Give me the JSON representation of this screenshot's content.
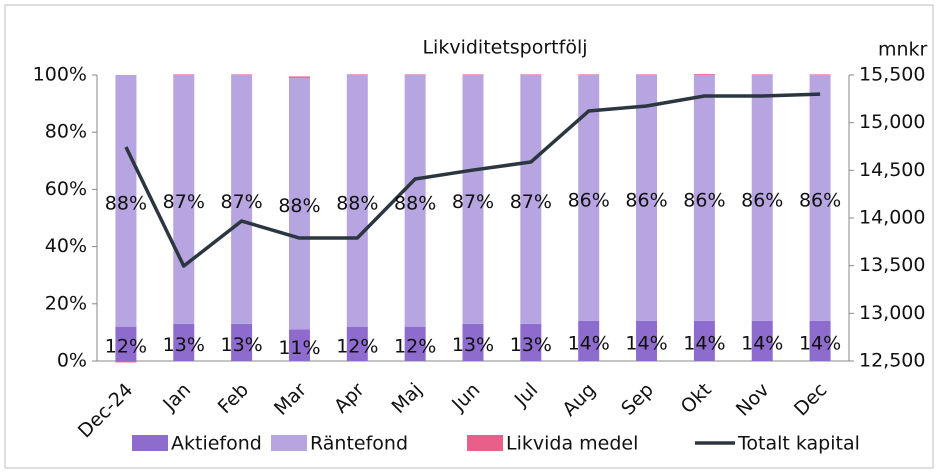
{
  "chart_data": {
    "type": "bar",
    "title": "Likviditetsportfölj",
    "y2_label": "mnkr",
    "categories": [
      "Dec-24",
      "Jan",
      "Feb",
      "Mar",
      "Apr",
      "Maj",
      "Jun",
      "Jul",
      "Aug",
      "Sep",
      "Okt",
      "Nov",
      "Dec"
    ],
    "series": [
      {
        "name": "Aktiefond",
        "color": "#8e6ccd",
        "type": "bar",
        "values": [
          12,
          13,
          13,
          11,
          12,
          12,
          13,
          13,
          14,
          14,
          14,
          14,
          14
        ],
        "value_labels": [
          "12%",
          "13%",
          "13%",
          "11%",
          "12%",
          "12%",
          "13%",
          "13%",
          "14%",
          "14%",
          "14%",
          "14%",
          "14%"
        ]
      },
      {
        "name": "Räntefond",
        "color": "#b6a5e0",
        "type": "bar",
        "values": [
          88,
          87,
          87,
          88,
          88,
          88,
          87,
          87,
          86,
          86,
          86,
          86,
          86
        ],
        "value_labels": [
          "88%",
          "87%",
          "87%",
          "88%",
          "88%",
          "88%",
          "87%",
          "87%",
          "86%",
          "86%",
          "86%",
          "86%",
          "86%"
        ]
      },
      {
        "name": "Likvida medel",
        "color": "#e8608a",
        "type": "bar",
        "values": [
          -0.5,
          0.2,
          0.2,
          0.5,
          0.2,
          0.2,
          0.2,
          0.2,
          0.2,
          0.2,
          0.3,
          0.2,
          0.2
        ]
      },
      {
        "name": "Totalt kapital",
        "color": "#2b3640",
        "type": "line",
        "axis": "y2",
        "values": [
          14745,
          13496,
          13968,
          13790,
          13790,
          14409,
          14503,
          14587,
          15122,
          15175,
          15280,
          15280,
          15300
        ]
      }
    ],
    "ylim": [
      0,
      100
    ],
    "yticks": [
      {
        "value": 0,
        "label": "0%"
      },
      {
        "value": 20,
        "label": "20%"
      },
      {
        "value": 40,
        "label": "40%"
      },
      {
        "value": 60,
        "label": "60%"
      },
      {
        "value": 80,
        "label": "80%"
      },
      {
        "value": 100,
        "label": "100%"
      }
    ],
    "y2lim": [
      12500,
      15500
    ],
    "y2ticks": [
      {
        "value": 12500,
        "label": "12,500"
      },
      {
        "value": 13000,
        "label": "13,000"
      },
      {
        "value": 13500,
        "label": "13,500"
      },
      {
        "value": 14000,
        "label": "14,000"
      },
      {
        "value": 14500,
        "label": "14,500"
      },
      {
        "value": 15000,
        "label": "15,000"
      },
      {
        "value": 15500,
        "label": "15,500"
      }
    ],
    "legend": "bottom"
  }
}
